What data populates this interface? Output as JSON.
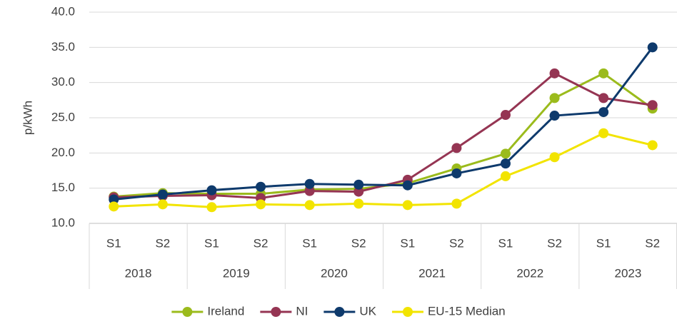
{
  "chart_data": {
    "type": "line",
    "y_label": "p/kWh",
    "categories": [
      "S1",
      "S2",
      "S1",
      "S2",
      "S1",
      "S2",
      "S1",
      "S2",
      "S1",
      "S2",
      "S1",
      "S2"
    ],
    "groups": [
      "2018",
      "2019",
      "2020",
      "2021",
      "2022",
      "2023"
    ],
    "series": [
      {
        "name": "Ireland",
        "color": "#9bbb1c",
        "values": [
          13.8,
          14.3,
          14.2,
          14.2,
          14.8,
          14.9,
          15.7,
          17.8,
          19.9,
          27.8,
          31.3,
          26.3
        ]
      },
      {
        "name": "NI",
        "color": "#953553",
        "values": [
          13.7,
          13.9,
          14.0,
          13.6,
          14.6,
          14.5,
          16.2,
          20.7,
          25.4,
          31.3,
          27.8,
          26.8
        ]
      },
      {
        "name": "UK",
        "color": "#0e3a6c",
        "values": [
          13.4,
          14.1,
          14.7,
          15.2,
          15.6,
          15.5,
          15.4,
          17.1,
          18.5,
          25.3,
          25.8,
          35.0
        ]
      },
      {
        "name": "EU-15 Median",
        "color": "#f2e400",
        "values": [
          12.4,
          12.7,
          12.3,
          12.7,
          12.6,
          12.8,
          12.6,
          12.8,
          16.7,
          19.4,
          22.8,
          21.1
        ]
      }
    ],
    "ylim": [
      10,
      40
    ],
    "yticks": [
      {
        "value": 10,
        "label": "10.0"
      },
      {
        "value": 15,
        "label": "15.0"
      },
      {
        "value": 20,
        "label": "20.0"
      },
      {
        "value": 25,
        "label": "25.0"
      },
      {
        "value": 30,
        "label": "30.0"
      },
      {
        "value": 35,
        "label": "35.0"
      },
      {
        "value": 40,
        "label": "40.0"
      }
    ],
    "grid": true,
    "legend": "bottom"
  }
}
